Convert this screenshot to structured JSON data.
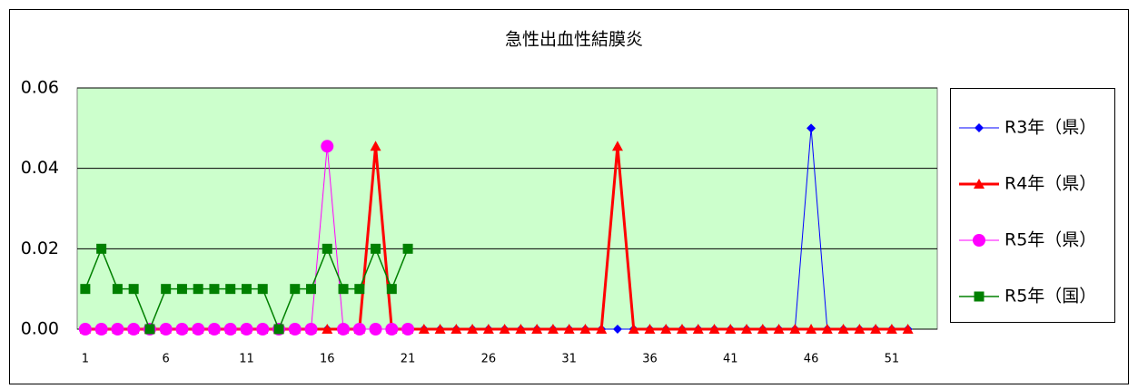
{
  "chart_data": {
    "type": "line",
    "title": "急性出血性結膜炎",
    "categories": [
      1,
      null,
      null,
      null,
      null,
      6,
      null,
      null,
      null,
      null,
      11,
      null,
      null,
      null,
      null,
      16,
      null,
      null,
      null,
      null,
      21,
      null,
      null,
      null,
      null,
      26,
      null,
      null,
      null,
      null,
      31,
      null,
      null,
      null,
      null,
      36,
      null,
      null,
      null,
      null,
      41,
      null,
      null,
      null,
      null,
      46,
      null,
      null,
      null,
      null,
      51,
      null,
      null
    ],
    "ylim": [
      0,
      0.06
    ],
    "yticks": [
      {
        "value": 0,
        "label": "0.00"
      },
      {
        "value": 0.02,
        "label": "0.02"
      },
      {
        "value": 0.04,
        "label": "0.04"
      },
      {
        "value": 0.06,
        "label": "0.06"
      }
    ],
    "grid": true,
    "legend": "right",
    "series": [
      {
        "name": "R3年（県）",
        "color": "#0000ff",
        "marker": "diamond",
        "width": 1,
        "values": [
          0,
          0,
          0,
          0,
          0,
          0,
          0,
          0,
          0,
          0,
          0,
          0,
          0,
          0,
          0,
          0,
          0,
          0,
          0,
          0,
          0,
          0,
          0,
          0,
          0,
          0,
          0,
          0,
          0,
          0,
          0,
          0,
          0,
          0,
          0,
          0,
          0,
          0,
          0,
          0,
          0,
          0,
          0,
          0,
          0,
          0.05,
          0,
          0,
          0,
          0,
          0,
          0,
          null
        ]
      },
      {
        "name": "R4年（県）",
        "color": "#ff0000",
        "marker": "triangle",
        "width": 3,
        "values": [
          0,
          0,
          0,
          0,
          0,
          0,
          0,
          0,
          0,
          0,
          0,
          0,
          0,
          0,
          0,
          0,
          0,
          0,
          0.0455,
          0,
          0,
          0,
          0,
          0,
          0,
          0,
          0,
          0,
          0,
          0,
          0,
          0,
          0,
          0.0455,
          0,
          0,
          0,
          0,
          0,
          0,
          0,
          0,
          0,
          0,
          0,
          0,
          0,
          0,
          0,
          0,
          0,
          0,
          null
        ]
      },
      {
        "name": "R5年（県）",
        "color": "#ff00ff",
        "marker": "circle",
        "width": 1,
        "values": [
          0,
          0,
          0,
          0,
          0,
          0,
          0,
          0,
          0,
          0,
          0,
          0,
          0,
          0,
          0,
          0.0455,
          0,
          0,
          0,
          0,
          0,
          null,
          null,
          null,
          null,
          null,
          null,
          null,
          null,
          null,
          null,
          null,
          null,
          null,
          null,
          null,
          null,
          null,
          null,
          null,
          null,
          null,
          null,
          null,
          null,
          null,
          null,
          null,
          null,
          null,
          null,
          null,
          null
        ]
      },
      {
        "name": "R5年（国）",
        "color": "#008000",
        "marker": "square",
        "width": 1.5,
        "values": [
          0.01,
          0.02,
          0.01,
          0.01,
          0,
          0.01,
          0.01,
          0.01,
          0.01,
          0.01,
          0.01,
          0.01,
          0,
          0.01,
          0.01,
          0.02,
          0.01,
          0.01,
          0.02,
          0.01,
          0.02,
          null,
          null,
          null,
          null,
          null,
          null,
          null,
          null,
          null,
          null,
          null,
          null,
          null,
          null,
          null,
          null,
          null,
          null,
          null,
          null,
          null,
          null,
          null,
          null,
          null,
          null,
          null,
          null,
          null,
          null,
          null,
          null
        ]
      }
    ]
  }
}
